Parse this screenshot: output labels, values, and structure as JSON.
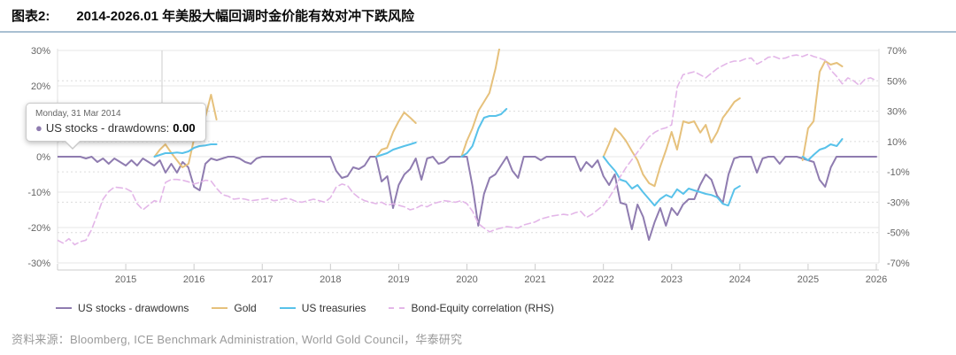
{
  "header": {
    "tag": "图表2:",
    "title": "2014-2026.01 年美股大幅回调时金价能有效对冲下跌风险",
    "rule_color": "#a9c0d2"
  },
  "tooltip": {
    "date": "Monday, 31 Mar 2014",
    "series_label": "US stocks - drawdowns:",
    "value": "0.00"
  },
  "source": {
    "prefix": "资料来源：",
    "text": "Bloomberg, ICE Benchmark Administration, World Gold Council，华泰研究"
  },
  "chart_data": {
    "type": "line",
    "title": "2014-2026.01 年美股大幅回调时金价能有效对冲下跌风险",
    "x_range": [
      2014.0,
      2026.08
    ],
    "x_ticks": [
      "2015",
      "2016",
      "2017",
      "2018",
      "2019",
      "2020",
      "2021",
      "2022",
      "2023",
      "2024",
      "2025",
      "2026"
    ],
    "left_axis": {
      "range": [
        -30,
        30
      ],
      "tick_values": [
        30,
        20,
        10,
        0,
        -10,
        -20,
        -30
      ],
      "tick_labels": [
        "30%",
        "20%",
        "10%",
        "0%",
        "-10%",
        "-20%",
        "-30%"
      ],
      "grid": "solid"
    },
    "right_axis": {
      "range": [
        -70,
        70
      ],
      "tick_values": [
        70,
        50,
        30,
        10,
        -10,
        -30,
        -50,
        -70
      ],
      "tick_labels": [
        "70%",
        "50%",
        "30%",
        "10%",
        "-10%",
        "-30%",
        "-50%",
        "-70%"
      ],
      "grid": "dotted"
    },
    "legend_position": "bottom",
    "series": [
      {
        "name": "US stocks - drawdowns",
        "axis": "left",
        "color": "#8f7cb0",
        "dash": false,
        "x_start": 2014.0,
        "x_step": 0.0833333,
        "values": [
          0,
          0,
          0,
          0,
          0,
          -0.5,
          0,
          -1.5,
          -0.5,
          -2,
          -0.5,
          -1.5,
          -2.5,
          -1,
          -2.5,
          -0.5,
          -1.5,
          -2.5,
          -1,
          -4.5,
          -2,
          -4.5,
          -1.5,
          -3,
          -8.5,
          -9.5,
          -2,
          -0.5,
          -1,
          -0.5,
          0,
          0,
          -0.5,
          -1.5,
          -2,
          -0.5,
          0,
          0,
          0,
          0,
          0,
          0,
          0,
          0,
          0,
          0,
          0,
          0,
          0,
          -4,
          -6,
          -5.5,
          -3,
          -3.5,
          -2.5,
          0,
          0,
          -7,
          -5.5,
          -14.5,
          -8,
          -5,
          -3.5,
          -0.5,
          -6.5,
          -0.5,
          0,
          -2,
          -1.5,
          0,
          0,
          0,
          0,
          -8.5,
          -19.5,
          -10.5,
          -6,
          -5,
          -2.5,
          0,
          -4,
          -6,
          0,
          0,
          0,
          -1,
          0,
          0,
          0,
          0,
          0,
          0,
          -4,
          -1.5,
          -3,
          -1,
          -5.5,
          -8,
          -5,
          -13,
          -13.5,
          -20.5,
          -13.5,
          -17,
          -23.5,
          -18.5,
          -14.5,
          -19.5,
          -14.5,
          -16.5,
          -13.5,
          -12,
          -12,
          -8,
          -5,
          -6.5,
          -11,
          -13,
          -5,
          -0.5,
          0,
          0,
          0,
          -4.5,
          -0.5,
          0,
          0,
          -2,
          0,
          0,
          0,
          -0.5,
          -1,
          -1.5,
          -6.5,
          -8.5,
          -3,
          0,
          0,
          0,
          0,
          0,
          0,
          0,
          0
        ]
      },
      {
        "name": "Gold",
        "axis": "left",
        "color": "#e6c17c",
        "dash": false,
        "segments": [
          [
            [
              2015.42,
              0
            ],
            [
              2015.5,
              2
            ],
            [
              2015.58,
              3.5
            ],
            [
              2015.67,
              1
            ],
            [
              2015.75,
              -1
            ],
            [
              2015.83,
              -3
            ],
            [
              2015.92,
              -2
            ],
            [
              2016.0,
              5
            ],
            [
              2016.08,
              13
            ],
            [
              2016.17,
              11.5
            ],
            [
              2016.25,
              17.5
            ],
            [
              2016.33,
              10.5
            ]
          ],
          [
            [
              2018.67,
              0
            ],
            [
              2018.75,
              2
            ],
            [
              2018.83,
              2.5
            ],
            [
              2018.92,
              7
            ],
            [
              2019.0,
              10
            ],
            [
              2019.08,
              12.5
            ],
            [
              2019.17,
              11
            ],
            [
              2019.25,
              9.5
            ]
          ],
          [
            [
              2019.92,
              0
            ],
            [
              2020.0,
              4.5
            ],
            [
              2020.08,
              8
            ],
            [
              2020.17,
              13
            ],
            [
              2020.25,
              15.5
            ],
            [
              2020.33,
              18
            ],
            [
              2020.42,
              25
            ],
            [
              2020.5,
              33
            ]
          ],
          [
            [
              2022.0,
              0
            ],
            [
              2022.08,
              3.5
            ],
            [
              2022.17,
              8
            ],
            [
              2022.25,
              6.5
            ],
            [
              2022.33,
              4.5
            ],
            [
              2022.42,
              1.5
            ],
            [
              2022.5,
              -1
            ],
            [
              2022.58,
              -5
            ],
            [
              2022.67,
              -7.5
            ],
            [
              2022.75,
              -8.3
            ],
            [
              2022.83,
              -3
            ],
            [
              2022.92,
              2
            ],
            [
              2023.0,
              7
            ],
            [
              2023.08,
              2
            ],
            [
              2023.17,
              10
            ],
            [
              2023.25,
              9.5
            ],
            [
              2023.33,
              10
            ],
            [
              2023.42,
              6.8
            ],
            [
              2023.5,
              9
            ],
            [
              2023.58,
              4
            ],
            [
              2023.67,
              7
            ],
            [
              2023.75,
              11
            ],
            [
              2023.83,
              13
            ],
            [
              2023.92,
              15.5
            ],
            [
              2024.0,
              16.5
            ]
          ],
          [
            [
              2024.92,
              -1
            ],
            [
              2025.0,
              8
            ],
            [
              2025.08,
              10
            ],
            [
              2025.17,
              24
            ],
            [
              2025.25,
              27
            ],
            [
              2025.33,
              26
            ],
            [
              2025.42,
              26.5
            ],
            [
              2025.5,
              25.5
            ]
          ]
        ]
      },
      {
        "name": "US treasuries",
        "axis": "left",
        "color": "#58c2ea",
        "dash": false,
        "segments": [
          [
            [
              2015.42,
              0
            ],
            [
              2015.5,
              0.5
            ],
            [
              2015.58,
              1
            ],
            [
              2015.67,
              1
            ],
            [
              2015.75,
              1.2
            ],
            [
              2015.83,
              1
            ],
            [
              2015.92,
              1.5
            ],
            [
              2016.0,
              2.5
            ],
            [
              2016.08,
              3
            ],
            [
              2016.17,
              3.2
            ],
            [
              2016.25,
              3.5
            ],
            [
              2016.33,
              3.5
            ]
          ],
          [
            [
              2018.67,
              0
            ],
            [
              2018.75,
              0.5
            ],
            [
              2018.83,
              1
            ],
            [
              2018.92,
              2
            ],
            [
              2019.0,
              2.5
            ],
            [
              2019.08,
              3
            ],
            [
              2019.17,
              3.5
            ],
            [
              2019.25,
              4
            ]
          ],
          [
            [
              2019.92,
              0
            ],
            [
              2020.0,
              1
            ],
            [
              2020.08,
              3
            ],
            [
              2020.17,
              8
            ],
            [
              2020.25,
              11
            ],
            [
              2020.33,
              11.5
            ],
            [
              2020.42,
              11.5
            ],
            [
              2020.5,
              12
            ],
            [
              2020.58,
              13.5
            ]
          ],
          [
            [
              2022.0,
              0
            ],
            [
              2022.08,
              -2
            ],
            [
              2022.17,
              -4
            ],
            [
              2022.25,
              -6.5
            ],
            [
              2022.33,
              -7
            ],
            [
              2022.42,
              -9
            ],
            [
              2022.5,
              -8
            ],
            [
              2022.58,
              -10
            ],
            [
              2022.67,
              -12
            ],
            [
              2022.75,
              -13.8
            ],
            [
              2022.83,
              -12
            ],
            [
              2022.92,
              -10.8
            ],
            [
              2023.0,
              -11.5
            ],
            [
              2023.08,
              -9.2
            ],
            [
              2023.17,
              -10.5
            ],
            [
              2023.25,
              -9
            ],
            [
              2023.33,
              -9.5
            ],
            [
              2023.42,
              -10
            ],
            [
              2023.5,
              -10.5
            ],
            [
              2023.58,
              -10.8
            ],
            [
              2023.67,
              -11.5
            ],
            [
              2023.75,
              -13.3
            ],
            [
              2023.83,
              -13.8
            ],
            [
              2023.92,
              -9.2
            ],
            [
              2024.0,
              -8.3
            ]
          ],
          [
            [
              2024.92,
              0
            ],
            [
              2025.0,
              -1
            ],
            [
              2025.08,
              0.5
            ],
            [
              2025.17,
              2
            ],
            [
              2025.25,
              2.5
            ],
            [
              2025.33,
              3.5
            ],
            [
              2025.42,
              3
            ],
            [
              2025.5,
              5
            ]
          ]
        ]
      },
      {
        "name": "Bond-Equity correlation (RHS)",
        "axis": "right",
        "color": "#e3b6e8",
        "dash": true,
        "x_start": 2014.0,
        "x_step": 0.0833333,
        "values": [
          -55,
          -57,
          -54,
          -58,
          -56,
          -55,
          -48,
          -38,
          -28,
          -23,
          -20,
          -20.5,
          -21,
          -23,
          -31,
          -35,
          -32,
          -29,
          -30,
          -17,
          -15,
          -15,
          -15.5,
          -16.5,
          -18,
          -17,
          -15.5,
          -16,
          -21,
          -25,
          -26,
          -28,
          -27.5,
          -28,
          -29,
          -28.5,
          -28,
          -27.5,
          -29,
          -28.5,
          -27.5,
          -28,
          -29.5,
          -30,
          -29,
          -28,
          -29,
          -30,
          -27,
          -20,
          -18,
          -19,
          -24,
          -27,
          -29,
          -30,
          -31,
          -30,
          -32,
          -31,
          -32,
          -33,
          -35,
          -34,
          -32,
          -33,
          -31,
          -30,
          -29,
          -29.5,
          -30,
          -29,
          -31,
          -36,
          -44,
          -47,
          -49.5,
          -48,
          -47,
          -46,
          -46.5,
          -47,
          -45,
          -44,
          -43,
          -41,
          -40,
          -39,
          -38.5,
          -38,
          -38.5,
          -37,
          -36,
          -40,
          -38,
          -35,
          -32,
          -27,
          -21,
          -13,
          -7,
          -2,
          3,
          8,
          13,
          16,
          18,
          19,
          21,
          46,
          54,
          55,
          56,
          54,
          52,
          55,
          58,
          60,
          62,
          63,
          63,
          64.5,
          65,
          61,
          63,
          65.5,
          66,
          64.5,
          65,
          66.5,
          67,
          66,
          67.5,
          66,
          65,
          63.5,
          57,
          53,
          48,
          52,
          50,
          47,
          51,
          52,
          50
        ]
      }
    ]
  }
}
